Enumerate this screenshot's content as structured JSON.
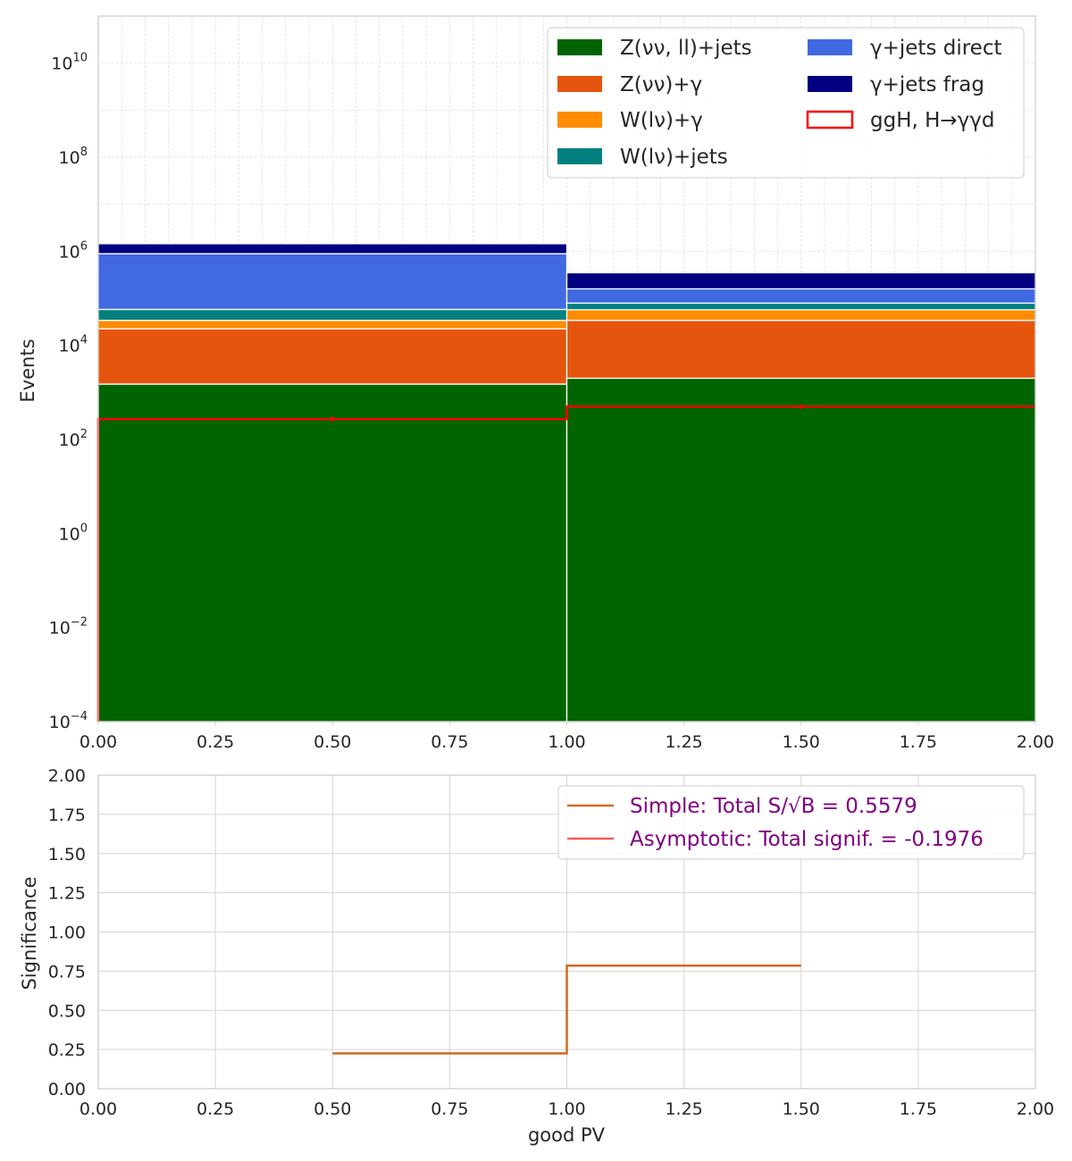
{
  "chart_data": [
    {
      "type": "bar",
      "stacked": true,
      "ylabel": "Events",
      "yscale": "log",
      "xlim": [
        0,
        2
      ],
      "ylim": [
        0.0001,
        100000000000
      ],
      "x_ticks": [
        "0.00",
        "0.25",
        "0.50",
        "0.75",
        "1.00",
        "1.25",
        "1.50",
        "1.75",
        "2.00"
      ],
      "y_ticks": [
        {
          "value": 0.0001,
          "base": "10",
          "exp": "−4"
        },
        {
          "value": 0.01,
          "base": "10",
          "exp": "−2"
        },
        {
          "value": 1,
          "base": "10",
          "exp": "0"
        },
        {
          "value": 100,
          "base": "10",
          "exp": "2"
        },
        {
          "value": 10000,
          "base": "10",
          "exp": "4"
        },
        {
          "value": 1000000,
          "base": "10",
          "exp": "6"
        },
        {
          "value": 100000000,
          "base": "10",
          "exp": "8"
        },
        {
          "value": 10000000000,
          "base": "10",
          "exp": "10"
        }
      ],
      "grid": true,
      "legend_position": "top-right",
      "bins": [
        [
          0,
          1
        ],
        [
          1,
          2
        ]
      ],
      "series": [
        {
          "name": "Z(νν, ll)+jets",
          "legend_text": "Z(νν, ll)+jets",
          "color": "#006400",
          "values": [
            1500,
            2000
          ]
        },
        {
          "name": "Z(νν)+γ",
          "legend_text": "Z(νν)+γ",
          "color": "#e6550d",
          "values": [
            21000,
            32000
          ]
        },
        {
          "name": "W(lν)+γ",
          "legend_text": "W(lν)+γ",
          "color": "#ff8c00",
          "values": [
            11500,
            23000
          ]
        },
        {
          "name": "W(lν)+jets",
          "legend_text": "W(lν)+jets",
          "color": "#008080",
          "values": [
            24000,
            22000
          ]
        },
        {
          "name": "γ+jets direct",
          "legend_text": "γ+jets direct",
          "color": "#4169e1",
          "values": [
            830000,
            80000
          ]
        },
        {
          "name": "γ+jets frag",
          "legend_text": "γ+jets frag",
          "color": "#000080",
          "values": [
            560000,
            190000
          ]
        }
      ],
      "signal": {
        "name": "ggH, H→γγd",
        "legend_text": "ggH, H→γγd",
        "color": "#ff0000",
        "values": [
          270,
          500
        ]
      }
    },
    {
      "type": "line",
      "xlabel": "good PV",
      "ylabel": "Significance",
      "xlim": [
        0,
        2
      ],
      "ylim": [
        0,
        2
      ],
      "x_ticks": [
        "0.00",
        "0.25",
        "0.50",
        "0.75",
        "1.00",
        "1.25",
        "1.50",
        "1.75",
        "2.00"
      ],
      "y_ticks": [
        "0.00",
        "0.25",
        "0.50",
        "0.75",
        "1.00",
        "1.25",
        "1.50",
        "1.75",
        "2.00"
      ],
      "grid": true,
      "legend_position": "top-right",
      "legend_text_color": "#800080",
      "series": [
        {
          "name": "Simple: Total S/√B = 0.5579",
          "legend_text": "Simple: Total S/√B = 0.5579",
          "color": "#d2691e",
          "step": "post",
          "x": [
            0.5,
            1.0,
            1.5
          ],
          "y": [
            0.225,
            0.785,
            0.785
          ]
        },
        {
          "name": "Asymptotic: Total signif. = -0.1976",
          "legend_text": "Asymptotic: Total signif. = -0.1976",
          "color": "#fa5a5a",
          "x": [],
          "y": []
        }
      ]
    }
  ]
}
